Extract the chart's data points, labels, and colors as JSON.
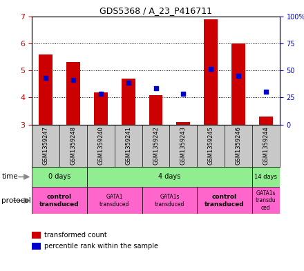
{
  "title": "GDS5368 / A_23_P416711",
  "samples": [
    "GSM1359247",
    "GSM1359248",
    "GSM1359240",
    "GSM1359241",
    "GSM1359242",
    "GSM1359243",
    "GSM1359245",
    "GSM1359246",
    "GSM1359244"
  ],
  "red_values": [
    5.6,
    5.3,
    4.2,
    4.7,
    4.1,
    3.1,
    6.9,
    6.0,
    3.3
  ],
  "blue_values": [
    4.72,
    4.65,
    4.13,
    4.55,
    4.35,
    4.15,
    5.05,
    4.8,
    4.22
  ],
  "y_min": 3.0,
  "y_max": 7.0,
  "y_ticks": [
    3,
    4,
    5,
    6,
    7
  ],
  "right_y_ticks": [
    0,
    25,
    50,
    75,
    100
  ],
  "right_y_labels": [
    "0",
    "25",
    "50",
    "75",
    "100%"
  ],
  "time_boundaries": [
    0,
    2,
    8,
    9
  ],
  "time_labels": [
    "0 days",
    "4 days",
    "14 days"
  ],
  "time_color": "#90EE90",
  "protocol_starts": [
    0,
    2,
    4,
    6,
    8
  ],
  "protocol_ends": [
    2,
    4,
    6,
    8,
    9
  ],
  "protocol_labels": [
    "control\ntransduced",
    "GATA1\ntransduced",
    "GATA1s\ntransduced",
    "control\ntransduced",
    "GATA1s\ntransdu\nced"
  ],
  "protocol_bold": [
    true,
    false,
    false,
    true,
    false
  ],
  "protocol_color": "#FF00FF",
  "bar_color": "#CC0000",
  "dot_color": "#0000CC",
  "label_color_left": "#CC0000",
  "label_color_right": "#0000CC",
  "sample_bg": "#C8C8C8",
  "arrow_color": "#808080",
  "plot_bg": "#FFFFFF"
}
